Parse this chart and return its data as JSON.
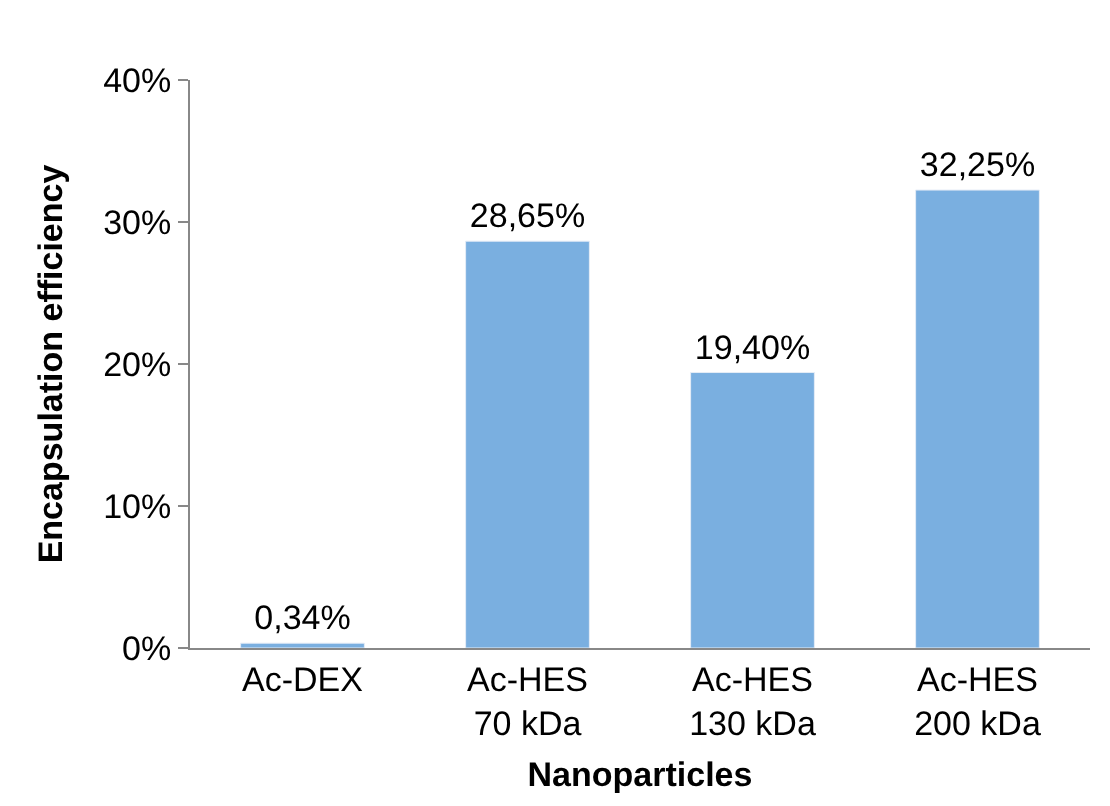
{
  "chart_data": {
    "type": "bar",
    "xlabel": "Nanoparticles",
    "ylabel": "Encapsulation efficiency",
    "categories": [
      "Ac-DEX",
      "Ac-HES\n70 kDa",
      "Ac-HES\n130 kDa",
      "Ac-HES\n200 kDa"
    ],
    "values": [
      0.34,
      28.65,
      19.4,
      32.25
    ],
    "value_labels": [
      "0,34%",
      "28,65%",
      "19,40%",
      "32,25%"
    ],
    "color": "#7aafe0",
    "ylim": [
      0,
      40
    ],
    "yticks": [
      {
        "value": 0,
        "label": "0%"
      },
      {
        "value": 10,
        "label": "10%"
      },
      {
        "value": 20,
        "label": "20%"
      },
      {
        "value": 30,
        "label": "30%"
      },
      {
        "value": 40,
        "label": "40%"
      }
    ],
    "legend": false
  }
}
